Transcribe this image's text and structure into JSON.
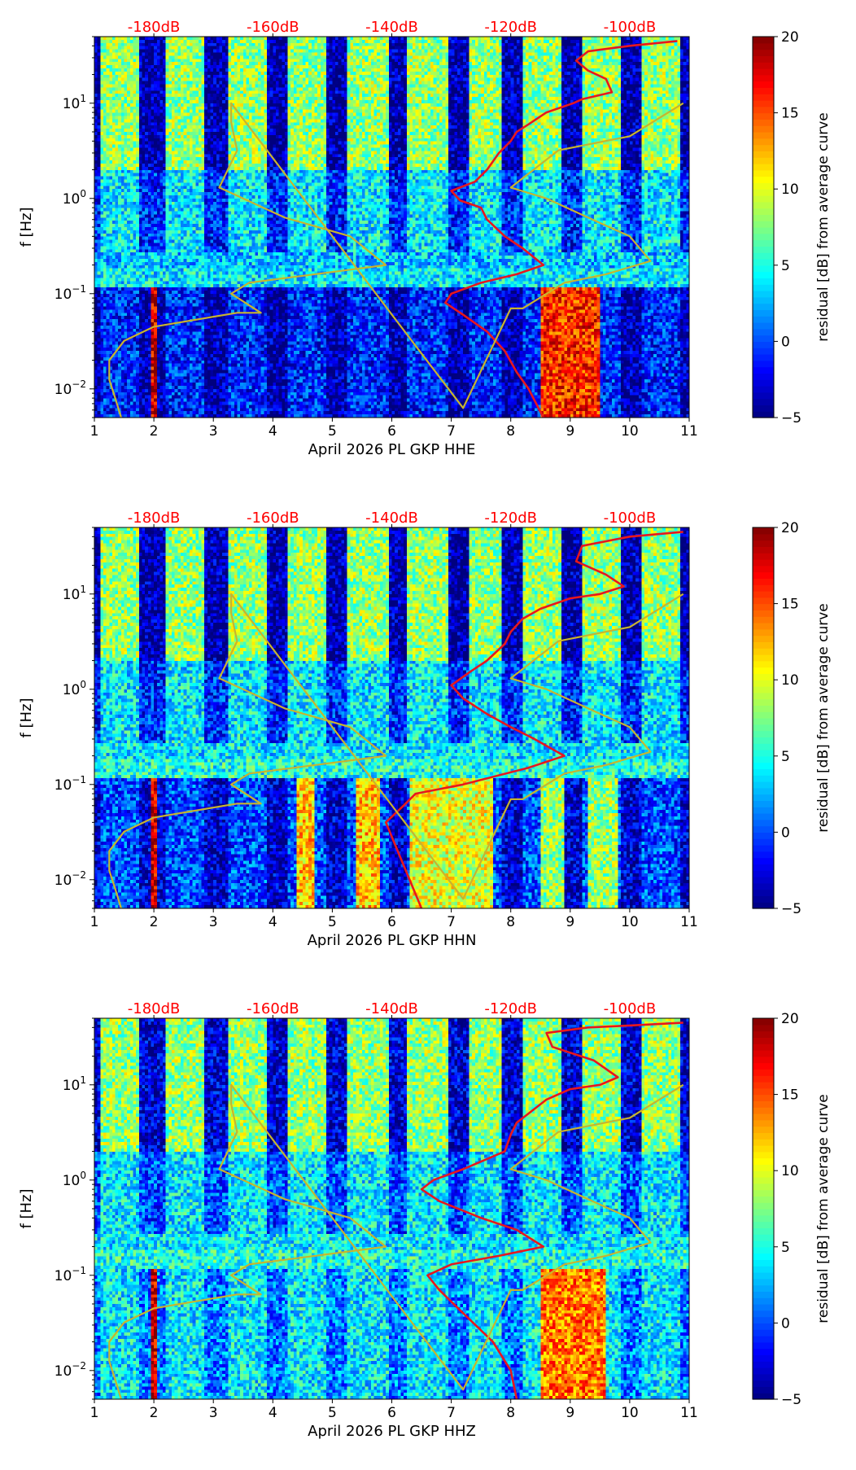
{
  "colors": {
    "red_curve": "#e8171d",
    "model_curve": "#c8b42e",
    "top_axis_label": "#ff0000",
    "colormap": [
      "#00007f",
      "#0000ff",
      "#007fff",
      "#00ffff",
      "#7fff7f",
      "#ffff00",
      "#ff7f00",
      "#ff0000",
      "#7f0000"
    ]
  },
  "chart_data": [
    {
      "type": "heatmap",
      "channel": "HHE",
      "xlabel": "April 2026 PL GKP  HHE",
      "ylabel": "f [Hz]",
      "colorbar_label": "residual [dB] from average curve",
      "xlim": [
        1,
        11
      ],
      "x_ticks": [
        "1",
        "2",
        "3",
        "4",
        "5",
        "6",
        "7",
        "8",
        "9",
        "10",
        "11"
      ],
      "ylim": [
        0.005,
        50
      ],
      "y_scale": "log",
      "y_ticks": [
        {
          "value": 0.01,
          "base": "10",
          "exp": "−2"
        },
        {
          "value": 0.1,
          "base": "10",
          "exp": "−1"
        },
        {
          "value": 1,
          "base": "10",
          "exp": "0"
        },
        {
          "value": 10,
          "base": "10",
          "exp": "1"
        }
      ],
      "top_axis": {
        "labels": [
          "-180dB",
          "-160dB",
          "-140dB",
          "-120dB",
          "-100dB"
        ],
        "positions": [
          2,
          4,
          6,
          8,
          10
        ]
      },
      "colorbar": {
        "range": [
          -5,
          20
        ],
        "ticks": [
          "−5",
          "0",
          "5",
          "10",
          "15",
          "20"
        ]
      },
      "intensity": {
        "day_bands": [
          [
            1.1,
            1.75
          ],
          [
            2.2,
            2.85
          ],
          [
            3.25,
            3.9
          ],
          [
            4.25,
            4.9
          ],
          [
            5.25,
            5.95
          ],
          [
            6.25,
            6.95
          ],
          [
            7.3,
            7.85
          ],
          [
            8.2,
            8.85
          ],
          [
            9.2,
            9.85
          ],
          [
            10.2,
            10.85
          ]
        ],
        "band_level": 7,
        "night_level": -1,
        "microseism_hz": [
          0.12,
          0.28
        ],
        "microseism_level": 3,
        "low_freq_columns": [
          {
            "x": [
              8.5,
              9.5
            ],
            "level": 16
          },
          {
            "x": [
              1.95,
              2.05
            ],
            "level": 18
          }
        ],
        "low_freq_background": -4
      },
      "series": [
        {
          "name": "red",
          "x": [
            10.8,
            10.0,
            9.3,
            9.1,
            9.3,
            9.6,
            9.7,
            9.2,
            9.05,
            8.6,
            8.3,
            8.1,
            8.0,
            7.8,
            7.6,
            7.4,
            7.0,
            7.15,
            7.5,
            7.6,
            7.9,
            8.2,
            8.55,
            8.1,
            7.5,
            7.0,
            6.9,
            7.2,
            7.6,
            7.9,
            8.1,
            8.3,
            8.55
          ],
          "y": [
            45,
            40,
            35,
            28,
            22,
            18,
            13,
            11,
            10,
            8,
            6,
            5,
            4,
            3,
            2,
            1.5,
            1.2,
            0.95,
            0.8,
            0.6,
            0.4,
            0.3,
            0.2,
            0.16,
            0.13,
            0.1,
            0.08,
            0.06,
            0.04,
            0.025,
            0.015,
            0.01,
            0.005
          ]
        },
        {
          "name": "model",
          "x": [
            1.45,
            1.35,
            1.25,
            1.25,
            1.5,
            2.0,
            3.4,
            3.8,
            3.3,
            3.6,
            5.9,
            5.3,
            4.2,
            3.1,
            3.4,
            3.3,
            3.3,
            6.1,
            7.2,
            8.0,
            8.2,
            8.9,
            9.6,
            10.35,
            10.0,
            9.3,
            8.6,
            8.0,
            8.8,
            10.0,
            10.9
          ],
          "y": [
            0.005,
            0.008,
            0.0125,
            0.02,
            0.032,
            0.045,
            0.063,
            0.063,
            0.1,
            0.13,
            0.2,
            0.4,
            0.63,
            1.3,
            3.2,
            6.3,
            10,
            0.05,
            0.0063,
            0.07,
            0.07,
            0.13,
            0.16,
            0.22,
            0.4,
            0.63,
            1.0,
            1.3,
            3.2,
            4.5,
            10
          ]
        }
      ]
    },
    {
      "type": "heatmap",
      "channel": "HHN",
      "xlabel": "April 2026 PL GKP  HHN",
      "ylabel": "f [Hz]",
      "colorbar_label": "residual [dB] from average curve",
      "xlim": [
        1,
        11
      ],
      "x_ticks": [
        "1",
        "2",
        "3",
        "4",
        "5",
        "6",
        "7",
        "8",
        "9",
        "10",
        "11"
      ],
      "ylim": [
        0.005,
        50
      ],
      "y_scale": "log",
      "y_ticks": [
        {
          "value": 0.01,
          "base": "10",
          "exp": "−2"
        },
        {
          "value": 0.1,
          "base": "10",
          "exp": "−1"
        },
        {
          "value": 1,
          "base": "10",
          "exp": "0"
        },
        {
          "value": 10,
          "base": "10",
          "exp": "1"
        }
      ],
      "top_axis": {
        "labels": [
          "-180dB",
          "-160dB",
          "-140dB",
          "-120dB",
          "-100dB"
        ],
        "positions": [
          2,
          4,
          6,
          8,
          10
        ]
      },
      "colorbar": {
        "range": [
          -5,
          20
        ],
        "ticks": [
          "−5",
          "0",
          "5",
          "10",
          "15",
          "20"
        ]
      },
      "intensity": {
        "day_bands": [
          [
            1.1,
            1.75
          ],
          [
            2.2,
            2.85
          ],
          [
            3.25,
            3.9
          ],
          [
            4.25,
            4.9
          ],
          [
            5.25,
            5.95
          ],
          [
            6.25,
            6.95
          ],
          [
            7.3,
            7.85
          ],
          [
            8.2,
            8.85
          ],
          [
            9.2,
            9.85
          ],
          [
            10.2,
            10.85
          ]
        ],
        "band_level": 7,
        "night_level": -1,
        "microseism_hz": [
          0.1,
          0.28
        ],
        "microseism_level": 4,
        "low_freq_columns": [
          {
            "x": [
              4.4,
              4.7
            ],
            "level": 12
          },
          {
            "x": [
              5.4,
              5.8
            ],
            "level": 12
          },
          {
            "x": [
              6.3,
              7.7
            ],
            "level": 10
          },
          {
            "x": [
              8.5,
              8.9
            ],
            "level": 8
          },
          {
            "x": [
              9.3,
              9.8
            ],
            "level": 8
          },
          {
            "x": [
              1.95,
              2.05
            ],
            "level": 18
          }
        ],
        "low_freq_background": -3
      },
      "series": [
        {
          "name": "red",
          "x": [
            10.9,
            10.0,
            9.2,
            9.1,
            9.6,
            9.9,
            9.5,
            9.0,
            8.5,
            8.2,
            8.0,
            7.9,
            7.6,
            7.3,
            7.0,
            7.2,
            7.6,
            8.0,
            8.4,
            8.9,
            8.3,
            7.2,
            6.4,
            6.2,
            5.9,
            6.1,
            6.3,
            6.5
          ],
          "y": [
            45,
            40,
            32,
            22,
            16,
            12,
            10,
            9,
            7,
            5.5,
            4,
            3,
            2,
            1.5,
            1.1,
            0.8,
            0.55,
            0.4,
            0.3,
            0.2,
            0.15,
            0.1,
            0.08,
            0.06,
            0.04,
            0.02,
            0.01,
            0.005
          ]
        },
        {
          "name": "model",
          "x": [
            1.45,
            1.35,
            1.25,
            1.25,
            1.5,
            2.0,
            3.4,
            3.8,
            3.3,
            3.6,
            5.9,
            5.3,
            4.2,
            3.1,
            3.4,
            3.3,
            3.3,
            6.1,
            7.2,
            8.0,
            8.2,
            8.9,
            9.6,
            10.35,
            10.0,
            9.3,
            8.6,
            8.0,
            8.8,
            10.0,
            10.9
          ],
          "y": [
            0.005,
            0.008,
            0.0125,
            0.02,
            0.032,
            0.045,
            0.063,
            0.063,
            0.1,
            0.13,
            0.2,
            0.4,
            0.63,
            1.3,
            3.2,
            6.3,
            10,
            0.05,
            0.0063,
            0.07,
            0.07,
            0.13,
            0.16,
            0.22,
            0.4,
            0.63,
            1.0,
            1.3,
            3.2,
            4.5,
            10
          ]
        }
      ]
    },
    {
      "type": "heatmap",
      "channel": "HHZ",
      "xlabel": "April 2026 PL GKP  HHZ",
      "ylabel": "f [Hz]",
      "colorbar_label": "residual [dB] from average curve",
      "xlim": [
        1,
        11
      ],
      "x_ticks": [
        "1",
        "2",
        "3",
        "4",
        "5",
        "6",
        "7",
        "8",
        "9",
        "10",
        "11"
      ],
      "ylim": [
        0.005,
        50
      ],
      "y_scale": "log",
      "y_ticks": [
        {
          "value": 0.01,
          "base": "10",
          "exp": "−2"
        },
        {
          "value": 0.1,
          "base": "10",
          "exp": "−1"
        },
        {
          "value": 1,
          "base": "10",
          "exp": "0"
        },
        {
          "value": 10,
          "base": "10",
          "exp": "1"
        }
      ],
      "top_axis": {
        "labels": [
          "-180dB",
          "-160dB",
          "-140dB",
          "-120dB",
          "-100dB"
        ],
        "positions": [
          2,
          4,
          6,
          8,
          10
        ]
      },
      "colorbar": {
        "range": [
          -5,
          20
        ],
        "ticks": [
          "−5",
          "0",
          "5",
          "10",
          "15",
          "20"
        ]
      },
      "intensity": {
        "day_bands": [
          [
            1.1,
            1.75
          ],
          [
            2.2,
            2.85
          ],
          [
            3.25,
            3.9
          ],
          [
            4.25,
            4.9
          ],
          [
            5.25,
            5.95
          ],
          [
            6.25,
            6.95
          ],
          [
            7.3,
            7.85
          ],
          [
            8.2,
            8.85
          ],
          [
            9.2,
            9.85
          ],
          [
            10.2,
            10.85
          ]
        ],
        "band_level": 7,
        "night_level": 0,
        "microseism_hz": [
          0.12,
          0.28
        ],
        "microseism_level": 4,
        "low_freq_columns": [
          {
            "x": [
              8.5,
              9.6
            ],
            "level": 14
          },
          {
            "x": [
              1.95,
              2.05
            ],
            "level": 18
          }
        ],
        "low_freq_background": 1
      },
      "series": [
        {
          "name": "red",
          "x": [
            10.9,
            10.0,
            9.3,
            8.6,
            8.7,
            9.4,
            9.8,
            9.5,
            9.0,
            8.6,
            8.3,
            8.1,
            8.0,
            7.9,
            7.2,
            6.7,
            6.5,
            6.8,
            7.5,
            8.1,
            8.55,
            7.8,
            7.0,
            6.6,
            6.8,
            7.2,
            7.7,
            8.0,
            8.1
          ],
          "y": [
            45,
            42,
            40,
            35,
            25,
            18,
            12,
            10,
            9,
            7,
            5,
            4,
            3,
            2,
            1.3,
            1.0,
            0.8,
            0.6,
            0.4,
            0.3,
            0.2,
            0.16,
            0.13,
            0.1,
            0.07,
            0.04,
            0.02,
            0.01,
            0.005
          ]
        },
        {
          "name": "model",
          "x": [
            1.45,
            1.35,
            1.25,
            1.25,
            1.5,
            2.0,
            3.4,
            3.8,
            3.3,
            3.6,
            5.9,
            5.3,
            4.2,
            3.1,
            3.4,
            3.3,
            3.3,
            6.1,
            7.2,
            8.0,
            8.2,
            8.9,
            9.6,
            10.35,
            10.0,
            9.3,
            8.6,
            8.0,
            8.8,
            10.0,
            10.9
          ],
          "y": [
            0.005,
            0.008,
            0.0125,
            0.02,
            0.032,
            0.045,
            0.063,
            0.063,
            0.1,
            0.13,
            0.2,
            0.4,
            0.63,
            1.3,
            3.2,
            6.3,
            10,
            0.05,
            0.0063,
            0.07,
            0.07,
            0.13,
            0.16,
            0.22,
            0.4,
            0.63,
            1.0,
            1.3,
            3.2,
            4.5,
            10
          ]
        }
      ]
    }
  ]
}
